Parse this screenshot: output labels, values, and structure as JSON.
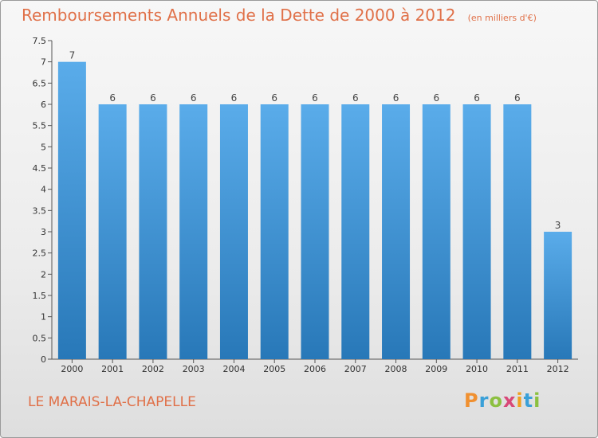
{
  "title": "Remboursements Annuels de la Dette de 2000 à 2012",
  "unit": "(en milliers d'€)",
  "commune": "LE MARAIS-LA-CHAPELLE",
  "logo": "Proxiti",
  "colors": {
    "bar_top": "#5aacea",
    "bar_bottom": "#2878b8",
    "title": "#e07048"
  },
  "chart_data": {
    "type": "bar",
    "title": "Remboursements Annuels de la Dette de 2000 à 2012",
    "ylabel": "en milliers d'€",
    "categories": [
      "2000",
      "2001",
      "2002",
      "2003",
      "2004",
      "2005",
      "2006",
      "2007",
      "2008",
      "2009",
      "2010",
      "2011",
      "2012"
    ],
    "values": [
      7,
      6,
      6,
      6,
      6,
      6,
      6,
      6,
      6,
      6,
      6,
      6,
      3
    ],
    "ylim": [
      0,
      7.5
    ],
    "yticks": [
      "0",
      "0.5",
      "1",
      "1.5",
      "2",
      "2.5",
      "3",
      "3.5",
      "4",
      "4.5",
      "5",
      "5.5",
      "6",
      "6.5",
      "7",
      "7.5"
    ],
    "grid": false
  }
}
